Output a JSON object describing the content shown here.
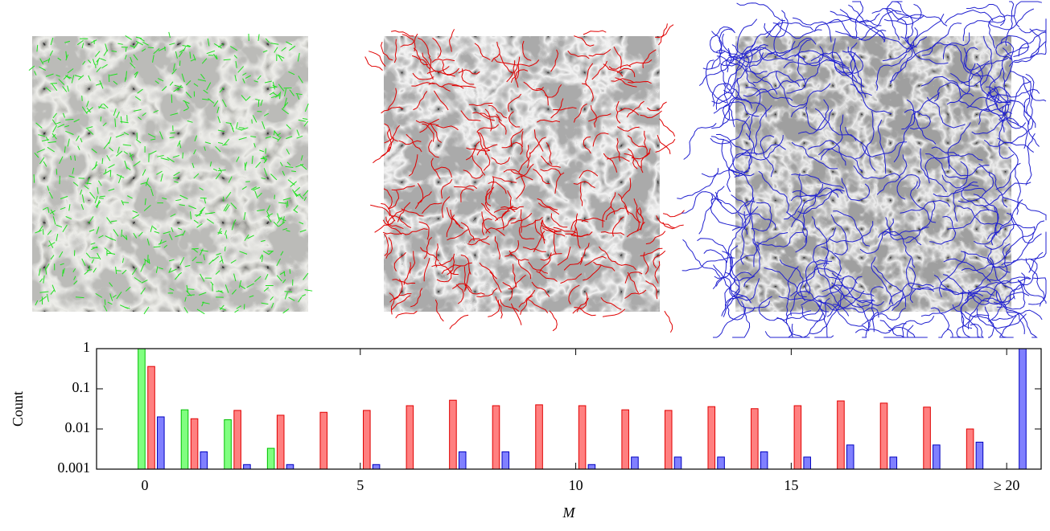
{
  "chart_data": {
    "type": "bar",
    "x": [
      0,
      1,
      2,
      3,
      4,
      5,
      6,
      7,
      8,
      9,
      10,
      11,
      12,
      13,
      14,
      15,
      16,
      17,
      18,
      19,
      20
    ],
    "series": [
      {
        "color": "#80ff80",
        "edgecolor": "#00c000",
        "values": [
          1,
          0.03,
          0.017,
          0.0033,
          null,
          null,
          null,
          null,
          null,
          null,
          null,
          null,
          null,
          null,
          null,
          null,
          null,
          null,
          null,
          null,
          null
        ]
      },
      {
        "color": "#ff8080",
        "edgecolor": "#e00000",
        "values": [
          0.36,
          0.018,
          0.029,
          0.022,
          0.026,
          0.029,
          0.038,
          0.052,
          0.038,
          0.04,
          0.038,
          0.03,
          0.029,
          0.036,
          0.032,
          0.038,
          0.05,
          0.044,
          0.035,
          0.01,
          null
        ]
      },
      {
        "color": "#8080ff",
        "edgecolor": "#0000c0",
        "values": [
          0.02,
          0.0027,
          0.0013,
          0.0013,
          null,
          0.0013,
          null,
          0.0027,
          0.0027,
          null,
          0.0013,
          0.002,
          0.002,
          0.002,
          0.0027,
          0.002,
          0.004,
          0.002,
          0.004,
          0.0047,
          1
        ]
      }
    ],
    "xlabel": "M",
    "ylabel": "Count",
    "xlim": [
      -1.12,
      20.8
    ],
    "xticks": [
      0,
      5,
      10,
      15,
      {
        "value": 20,
        "label": "≥ 20"
      }
    ],
    "ylim": [
      0.001,
      1
    ],
    "yticks": [
      1,
      0.1,
      0.01,
      0.001
    ],
    "yscale": "log",
    "grid": false
  }
}
